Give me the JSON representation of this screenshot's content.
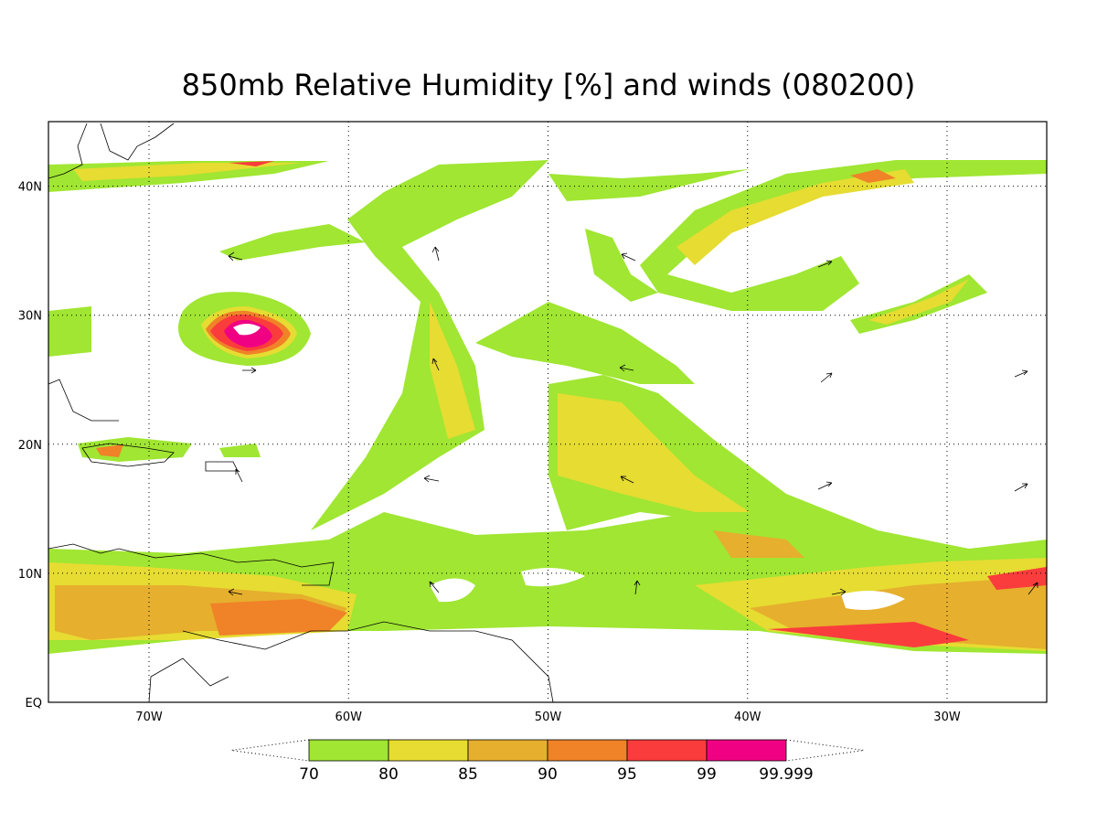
{
  "title": "850mb Relative Humidity [%] and winds (080200)",
  "map": {
    "lon_labels": [
      "70W",
      "60W",
      "50W",
      "40W",
      "30W"
    ],
    "lat_labels": [
      "EQ",
      "10N",
      "20N",
      "30N",
      "40N"
    ]
  },
  "colorbar": {
    "levels": [
      70,
      80,
      85,
      90,
      95,
      99,
      99.999
    ],
    "colors": [
      "#a0e632",
      "#e6dc32",
      "#e6af2d",
      "#f08228",
      "#fa3c3c",
      "#f00082"
    ]
  }
}
